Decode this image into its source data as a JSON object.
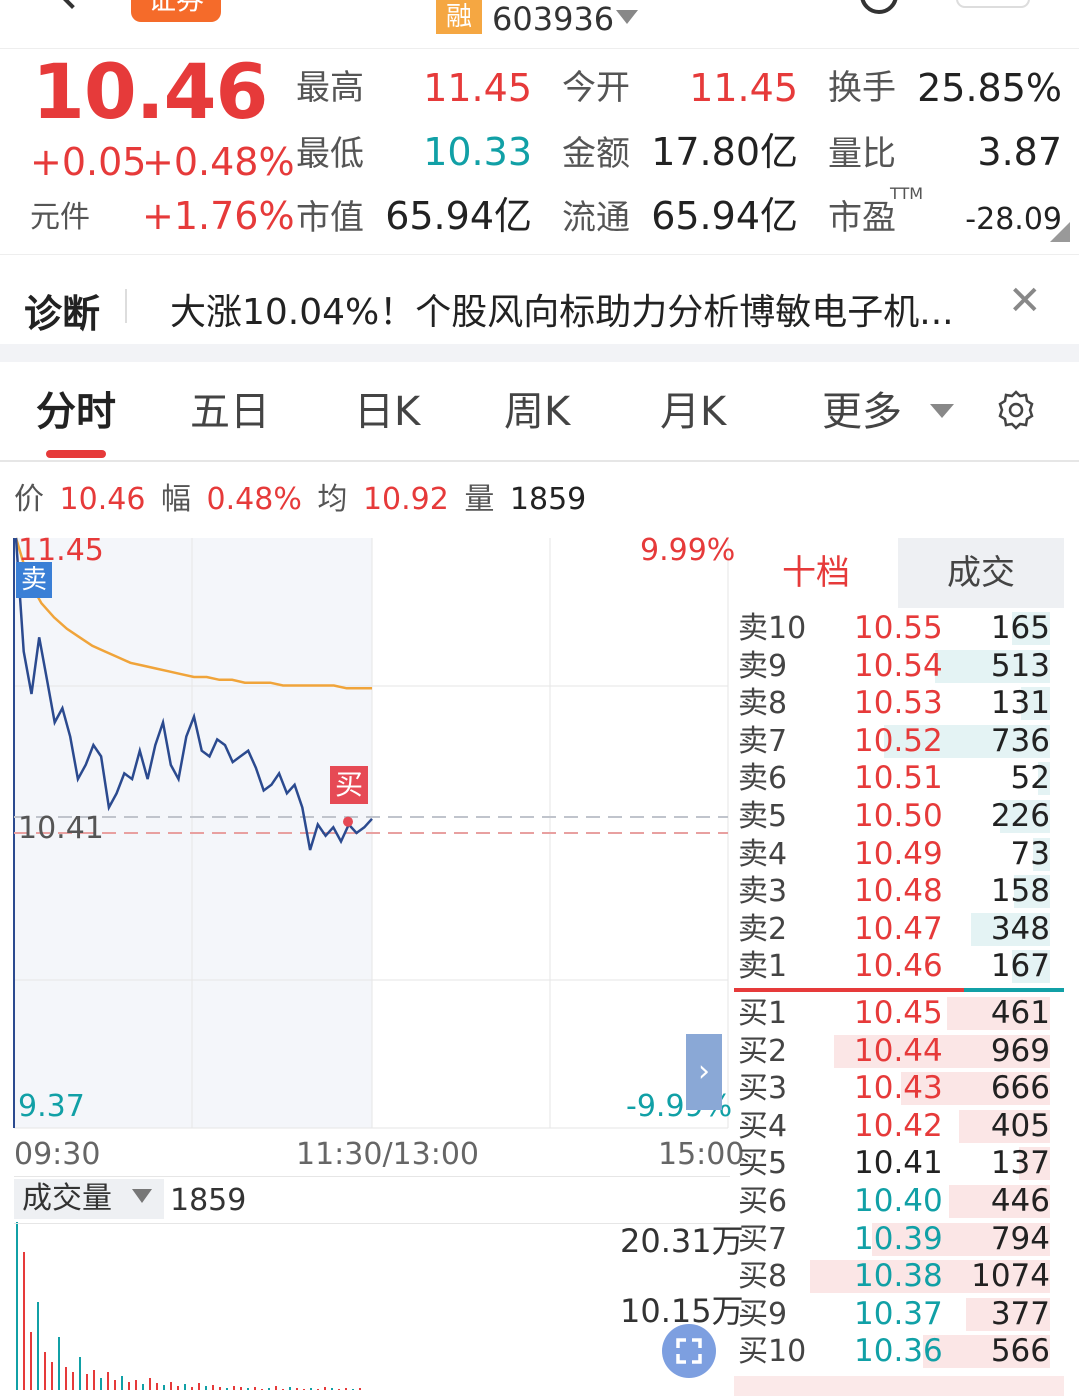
{
  "header": {
    "badge_partial": "证券",
    "rong_badge": "融",
    "stock_code": "603936"
  },
  "quote": {
    "price": "10.46",
    "change": "+0.05",
    "change_pct": "+0.48%",
    "unit_label": "元件",
    "unit_value": "+1.76%",
    "fields": [
      {
        "label": "最高",
        "value": "11.45",
        "color": "red"
      },
      {
        "label": "今开",
        "value": "11.45",
        "color": "red"
      },
      {
        "label": "换手",
        "value": "25.85%",
        "color": "dark"
      },
      {
        "label": "最低",
        "value": "10.33",
        "color": "teal"
      },
      {
        "label": "金额",
        "value": "17.80亿",
        "color": "dark"
      },
      {
        "label": "量比",
        "value": "3.87",
        "color": "dark"
      },
      {
        "label": "市值",
        "value": "65.94亿",
        "color": "dark"
      },
      {
        "label": "流通",
        "value": "65.94亿",
        "color": "dark"
      },
      {
        "label": "市盈",
        "value": "-28.09",
        "color": "dark"
      }
    ],
    "ttm": "TTM"
  },
  "diagnosis": {
    "title": "诊断",
    "text": "大涨10.04%！个股风向标助力分析博敏电子机...",
    "close": "✕"
  },
  "tabs": [
    "分时",
    "五日",
    "日K",
    "周K",
    "月K",
    "更多"
  ],
  "infoline": {
    "price_label": "价",
    "price": "10.46",
    "amp_label": "幅",
    "amp": "0.48%",
    "avg_label": "均",
    "avg": "10.92",
    "vol_label": "量",
    "vol": "1859"
  },
  "chart": {
    "y_high": "11.45",
    "y_ref": "10.41",
    "y_low": "9.37",
    "pct_high": "9.99%",
    "pct_low": "-9.99%",
    "time_start": "09:30",
    "time_mid": "11:30/13:00",
    "time_end": "15:00",
    "sell_tag": "卖",
    "buy_tag": "买",
    "expand": "›"
  },
  "chart_data": {
    "type": "line",
    "ylim": [
      9.37,
      11.45
    ],
    "reference_price": 10.41,
    "series": [
      {
        "values": [
          11.45,
          11.05,
          10.9,
          11.1,
          10.95,
          10.8,
          10.85,
          10.75,
          10.6,
          10.65,
          10.72,
          10.68,
          10.5,
          10.55,
          10.62,
          10.6,
          10.7,
          10.6,
          10.72,
          10.8,
          10.65,
          10.6,
          10.75,
          10.82,
          10.7,
          10.68,
          10.74,
          10.72,
          10.66,
          10.68,
          10.7,
          10.64,
          10.56,
          10.58,
          10.62,
          10.55,
          10.58,
          10.5,
          10.35,
          10.44,
          10.4,
          10.43,
          10.38,
          10.44,
          10.41,
          10.43,
          10.46
        ]
      },
      {
        "values": [
          11.45,
          11.3,
          11.22,
          11.17,
          11.13,
          11.1,
          11.07,
          11.05,
          11.03,
          11.01,
          11.0,
          10.99,
          10.98,
          10.97,
          10.96,
          10.96,
          10.95,
          10.95,
          10.94,
          10.94,
          10.94,
          10.93,
          10.93,
          10.93,
          10.93,
          10.93,
          10.92,
          10.92,
          10.92
        ]
      }
    ]
  },
  "volume": {
    "selector": "成交量",
    "value": "1859",
    "max_label": "20.31万",
    "mid_label": "10.15万"
  },
  "order_book": {
    "tab_ten": "十档",
    "tab_deal": "成交",
    "sell": [
      {
        "label": "卖10",
        "price": "10.55",
        "vol": "165",
        "pct": 0.16
      },
      {
        "label": "卖9",
        "price": "10.54",
        "vol": "513",
        "pct": 0.48
      },
      {
        "label": "卖8",
        "price": "10.53",
        "vol": "131",
        "pct": 0.12
      },
      {
        "label": "卖7",
        "price": "10.52",
        "vol": "736",
        "pct": 0.69
      },
      {
        "label": "卖6",
        "price": "10.51",
        "vol": "52",
        "pct": 0.05
      },
      {
        "label": "卖5",
        "price": "10.50",
        "vol": "226",
        "pct": 0.21
      },
      {
        "label": "卖4",
        "price": "10.49",
        "vol": "73",
        "pct": 0.07
      },
      {
        "label": "卖3",
        "price": "10.48",
        "vol": "158",
        "pct": 0.15
      },
      {
        "label": "卖2",
        "price": "10.47",
        "vol": "348",
        "pct": 0.33
      },
      {
        "label": "卖1",
        "price": "10.46",
        "vol": "167",
        "pct": 0.16
      }
    ],
    "buy": [
      {
        "label": "买1",
        "price": "10.45",
        "vol": "461",
        "pct": 0.43,
        "color": "red"
      },
      {
        "label": "买2",
        "price": "10.44",
        "vol": "969",
        "pct": 0.9,
        "color": "red"
      },
      {
        "label": "买3",
        "price": "10.43",
        "vol": "666",
        "pct": 0.62,
        "color": "red"
      },
      {
        "label": "买4",
        "price": "10.42",
        "vol": "405",
        "pct": 0.38,
        "color": "red"
      },
      {
        "label": "买5",
        "price": "10.41",
        "vol": "137",
        "pct": 0.13,
        "color": "dark"
      },
      {
        "label": "买6",
        "price": "10.40",
        "vol": "446",
        "pct": 0.42,
        "color": "teal"
      },
      {
        "label": "买7",
        "price": "10.39",
        "vol": "794",
        "pct": 0.74,
        "color": "teal"
      },
      {
        "label": "买8",
        "price": "10.38",
        "vol": "1074",
        "pct": 1.0,
        "color": "teal"
      },
      {
        "label": "买9",
        "price": "10.37",
        "vol": "377",
        "pct": 0.35,
        "color": "teal"
      },
      {
        "label": "买10",
        "price": "10.36",
        "vol": "566",
        "pct": 0.53,
        "color": "teal"
      }
    ]
  },
  "colors": {
    "red": "#e63a3a",
    "teal": "#11a0a6",
    "price_line": "#2b4a8f",
    "avg_line": "#f0a43a",
    "sell_bar": "#e4f3f4",
    "buy_bar": "#fbe6e6"
  }
}
